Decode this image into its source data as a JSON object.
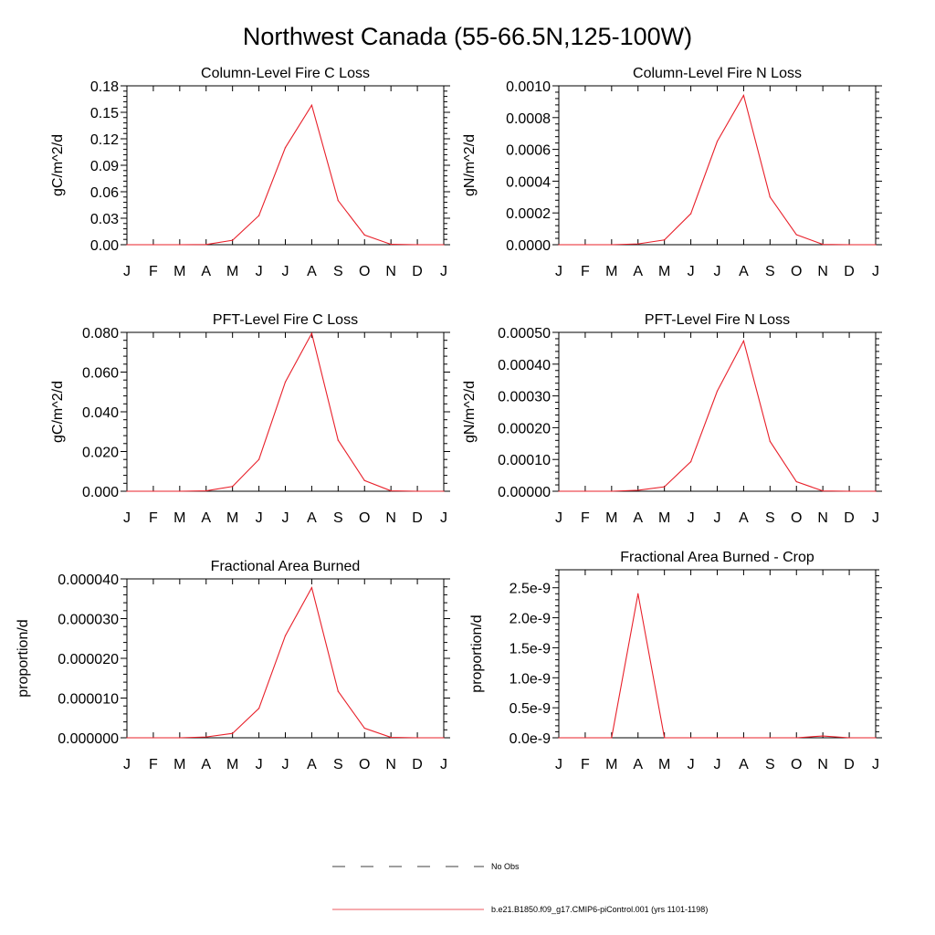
{
  "figure": {
    "title": "Northwest Canada (55-66.5N,125-100W)",
    "legend": [
      {
        "label": "No Obs",
        "style": "dashed",
        "color": "#000000"
      },
      {
        "label": "b.e21.B1850.f09_g17.CMIP6-piControl.001 (yrs 1101-1198)",
        "style": "solid",
        "color": "#e8202a"
      }
    ]
  },
  "chart_data": [
    {
      "type": "line",
      "title": "Column-Level Fire C Loss",
      "ylabel": "gC/m^2/d",
      "xlabel": "",
      "categories": [
        "J",
        "F",
        "M",
        "A",
        "M",
        "J",
        "J",
        "A",
        "S",
        "O",
        "N",
        "D",
        "J"
      ],
      "ylim": [
        0,
        0.18
      ],
      "yticks": [
        "0.00",
        "0.03",
        "0.06",
        "0.09",
        "0.12",
        "0.15",
        "0.18"
      ],
      "series": [
        {
          "name": "b.e21.B1850.f09_g17.CMIP6-piControl.001 (yrs 1101-1198)",
          "color": "#e8202a",
          "values": [
            0,
            0,
            0,
            0.0002,
            0.005,
            0.033,
            0.11,
            0.158,
            0.05,
            0.011,
            0.0004,
            0,
            0
          ]
        }
      ]
    },
    {
      "type": "line",
      "title": "Column-Level Fire N Loss",
      "ylabel": "gN/m^2/d",
      "xlabel": "",
      "categories": [
        "J",
        "F",
        "M",
        "A",
        "M",
        "J",
        "J",
        "A",
        "S",
        "O",
        "N",
        "D",
        "J"
      ],
      "ylim": [
        0,
        0.001
      ],
      "yticks": [
        "0.0000",
        "0.0002",
        "0.0004",
        "0.0006",
        "0.0008",
        "0.0010"
      ],
      "series": [
        {
          "name": "b.e21.B1850.f09_g17.CMIP6-piControl.001 (yrs 1101-1198)",
          "color": "#e8202a",
          "values": [
            0,
            0,
            0,
            5e-06,
            3e-05,
            0.000195,
            0.00065,
            0.00094,
            0.0003,
            6.3e-05,
            2e-06,
            0,
            0
          ]
        }
      ]
    },
    {
      "type": "line",
      "title": "PFT-Level Fire C Loss",
      "ylabel": "gC/m^2/d",
      "xlabel": "",
      "categories": [
        "J",
        "F",
        "M",
        "A",
        "M",
        "J",
        "J",
        "A",
        "S",
        "O",
        "N",
        "D",
        "J"
      ],
      "ylim": [
        0,
        0.08
      ],
      "yticks": [
        "0.000",
        "0.020",
        "0.040",
        "0.060",
        "0.080"
      ],
      "series": [
        {
          "name": "b.e21.B1850.f09_g17.CMIP6-piControl.001 (yrs 1101-1198)",
          "color": "#e8202a",
          "values": [
            0,
            0,
            0,
            0.0002,
            0.0024,
            0.016,
            0.055,
            0.0795,
            0.0257,
            0.0054,
            0.0002,
            0,
            0
          ]
        }
      ]
    },
    {
      "type": "line",
      "title": "PFT-Level Fire N Loss",
      "ylabel": "gN/m^2/d",
      "xlabel": "",
      "categories": [
        "J",
        "F",
        "M",
        "A",
        "M",
        "J",
        "J",
        "A",
        "S",
        "O",
        "N",
        "D",
        "J"
      ],
      "ylim": [
        0,
        0.0005
      ],
      "yticks": [
        "0.00000",
        "0.00010",
        "0.00020",
        "0.00030",
        "0.00040",
        "0.00050"
      ],
      "series": [
        {
          "name": "b.e21.B1850.f09_g17.CMIP6-piControl.001 (yrs 1101-1198)",
          "color": "#e8202a",
          "values": [
            0,
            0,
            0,
            3e-06,
            1.4e-05,
            9.3e-05,
            0.000315,
            0.000473,
            0.000157,
            3e-05,
            1e-06,
            0,
            0
          ]
        }
      ]
    },
    {
      "type": "line",
      "title": "Fractional Area Burned",
      "ylabel": "proportion/d",
      "xlabel": "",
      "categories": [
        "J",
        "F",
        "M",
        "A",
        "M",
        "J",
        "J",
        "A",
        "S",
        "O",
        "N",
        "D",
        "J"
      ],
      "ylim": [
        0,
        4e-05
      ],
      "yticks": [
        "0.000000",
        "0.000010",
        "0.000020",
        "0.000030",
        "0.000040"
      ],
      "series": [
        {
          "name": "b.e21.B1850.f09_g17.CMIP6-piControl.001 (yrs 1101-1198)",
          "color": "#e8202a",
          "values": [
            0,
            0,
            0,
            2e-07,
            1.1e-06,
            7.4e-06,
            2.57e-05,
            3.78e-05,
            1.17e-05,
            2.4e-06,
            1e-07,
            0,
            0
          ]
        }
      ]
    },
    {
      "type": "line",
      "title": "Fractional Area Burned - Crop",
      "ylabel": "proportion/d",
      "xlabel": "",
      "categories": [
        "J",
        "F",
        "M",
        "A",
        "M",
        "J",
        "J",
        "A",
        "S",
        "O",
        "N",
        "D",
        "J"
      ],
      "ylim": [
        0,
        2.8e-09
      ],
      "yticks": [
        "0.0e-9",
        "0.5e-9",
        "1.0e-9",
        "1.5e-9",
        "2.0e-9",
        "2.5e-9"
      ],
      "series": [
        {
          "name": "b.e21.B1850.f09_g17.CMIP6-piControl.001 (yrs 1101-1198)",
          "color": "#e8202a",
          "values": [
            0,
            0,
            0,
            2.4e-09,
            0,
            0,
            0,
            0,
            0,
            0,
            3e-11,
            0,
            0
          ]
        }
      ]
    }
  ]
}
